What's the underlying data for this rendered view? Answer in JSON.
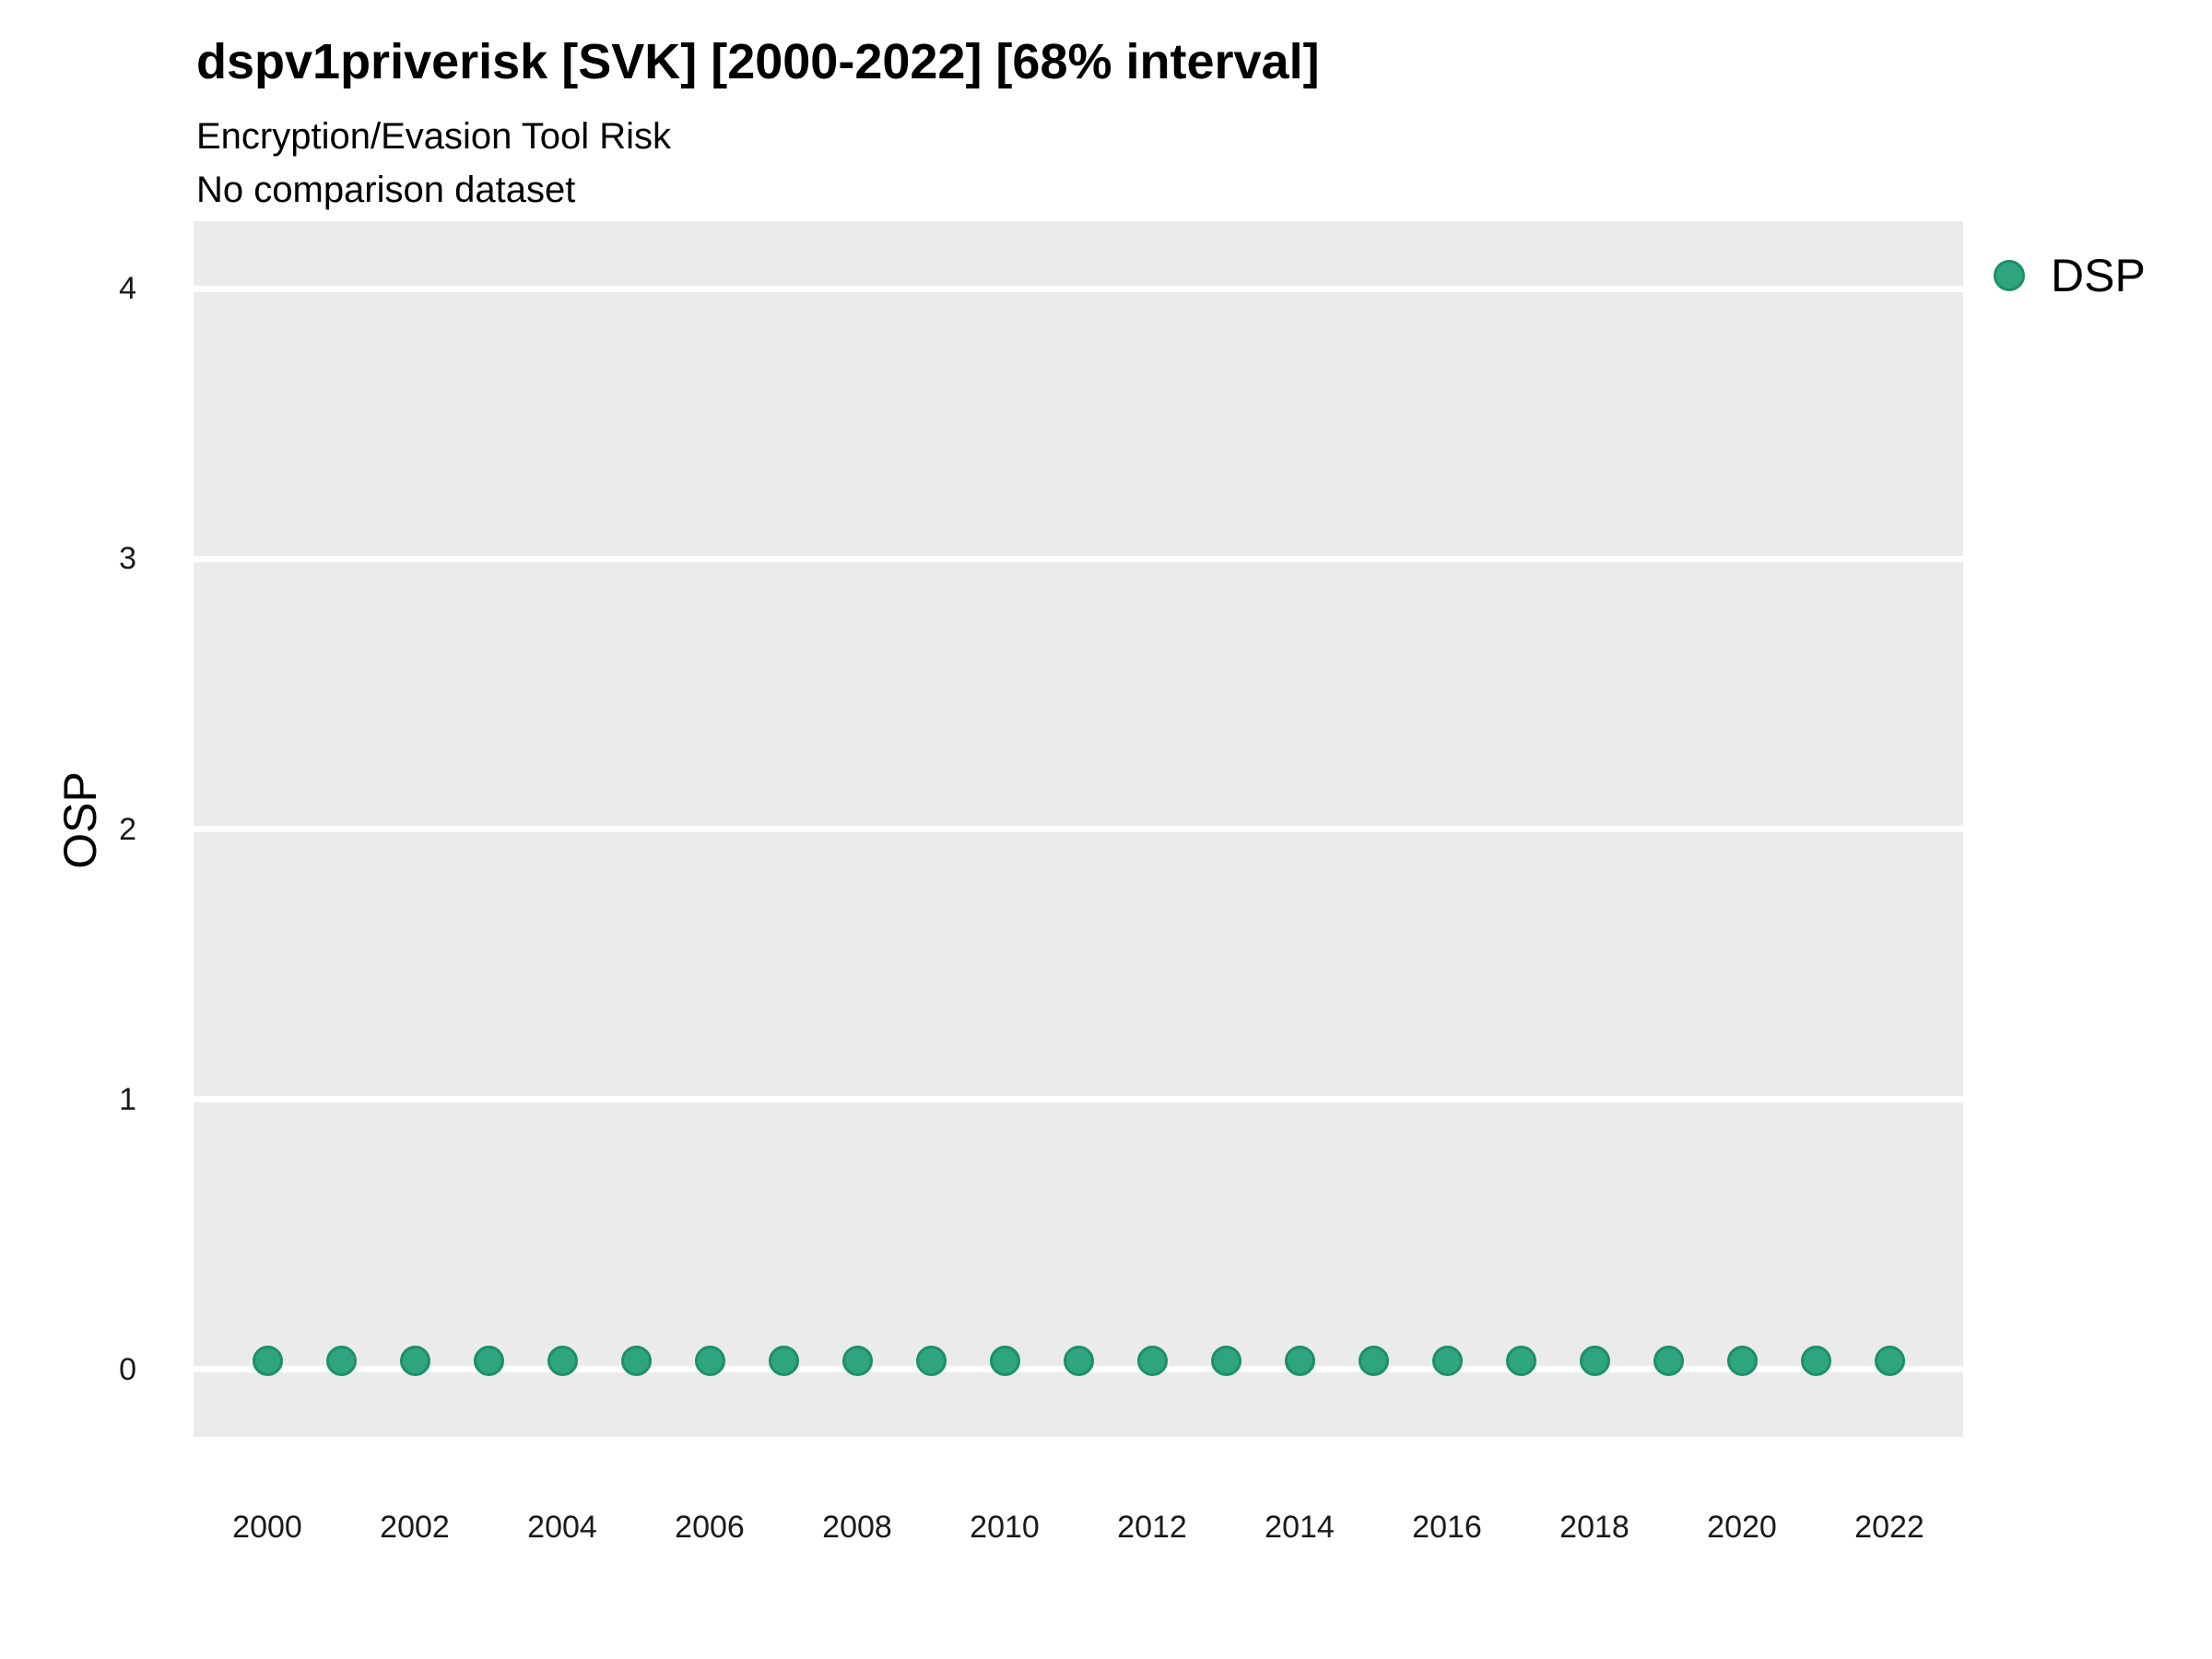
{
  "header": {
    "title": "dspv1priverisk [SVK] [2000-2022] [68% interval]",
    "subtitle": "Encryption/Evasion Tool Risk",
    "note": "No comparison dataset"
  },
  "colors": {
    "panel_bg": "#EBEBEB",
    "grid": "#FFFFFF",
    "point_fill": "#2EA57E",
    "point_stroke": "#1E8F68",
    "text": "#000000",
    "tick_text": "#1A1A1A"
  },
  "legend": {
    "position": "right-top",
    "items": [
      {
        "label": "DSP",
        "marker": "circle-icon",
        "color": "#2EA57E"
      }
    ]
  },
  "chart_data": {
    "type": "scatter",
    "title": "dspv1priverisk [SVK] [2000-2022] [68% interval]",
    "subtitle": "Encryption/Evasion Tool Risk",
    "annotation": "No comparison dataset",
    "xlabel": "",
    "ylabel": "OSP",
    "x": [
      2000,
      2001,
      2002,
      2003,
      2004,
      2005,
      2006,
      2007,
      2008,
      2009,
      2010,
      2011,
      2012,
      2013,
      2014,
      2015,
      2016,
      2017,
      2018,
      2019,
      2020,
      2021,
      2022
    ],
    "series": [
      {
        "name": "DSP",
        "values": [
          0.03,
          0.03,
          0.03,
          0.03,
          0.03,
          0.03,
          0.03,
          0.03,
          0.03,
          0.03,
          0.03,
          0.03,
          0.03,
          0.03,
          0.03,
          0.03,
          0.03,
          0.03,
          0.03,
          0.03,
          0.03,
          0.03,
          0.03
        ]
      }
    ],
    "xlim": [
      1999,
      2023
    ],
    "ylim": [
      -0.25,
      4.25
    ],
    "yticks": [
      0,
      1,
      2,
      3,
      4
    ],
    "xticks": [
      2000,
      2002,
      2004,
      2006,
      2008,
      2010,
      2012,
      2014,
      2016,
      2018,
      2020,
      2022
    ],
    "grid": "horizontal-major-white",
    "legend_position": "right-top"
  }
}
